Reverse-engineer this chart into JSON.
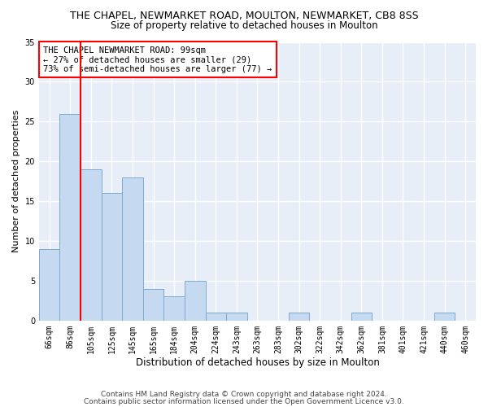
{
  "title": "THE CHAPEL, NEWMARKET ROAD, MOULTON, NEWMARKET, CB8 8SS",
  "subtitle": "Size of property relative to detached houses in Moulton",
  "xlabel": "Distribution of detached houses by size in Moulton",
  "ylabel": "Number of detached properties",
  "categories": [
    "66sqm",
    "86sqm",
    "105sqm",
    "125sqm",
    "145sqm",
    "165sqm",
    "184sqm",
    "204sqm",
    "224sqm",
    "243sqm",
    "263sqm",
    "283sqm",
    "302sqm",
    "322sqm",
    "342sqm",
    "362sqm",
    "381sqm",
    "401sqm",
    "421sqm",
    "440sqm",
    "460sqm"
  ],
  "values": [
    9,
    26,
    19,
    16,
    18,
    4,
    3,
    5,
    1,
    1,
    0,
    0,
    1,
    0,
    0,
    1,
    0,
    0,
    0,
    1,
    0
  ],
  "bar_color": "#c5d9f1",
  "bar_edge_color": "#7faacc",
  "ylim": [
    0,
    35
  ],
  "yticks": [
    0,
    5,
    10,
    15,
    20,
    25,
    30,
    35
  ],
  "background_color": "#e8eef8",
  "grid_color": "#ffffff",
  "fig_background": "#ffffff",
  "annotation_text": "THE CHAPEL NEWMARKET ROAD: 99sqm\n← 27% of detached houses are smaller (29)\n73% of semi-detached houses are larger (77) →",
  "footer1": "Contains HM Land Registry data © Crown copyright and database right 2024.",
  "footer2": "Contains public sector information licensed under the Open Government Licence v3.0.",
  "ref_line_x": 1.5,
  "title_fontsize": 9,
  "subtitle_fontsize": 8.5,
  "ylabel_fontsize": 8,
  "xlabel_fontsize": 8.5,
  "tick_fontsize": 7,
  "annotation_fontsize": 7.5,
  "footer_fontsize": 6.5
}
